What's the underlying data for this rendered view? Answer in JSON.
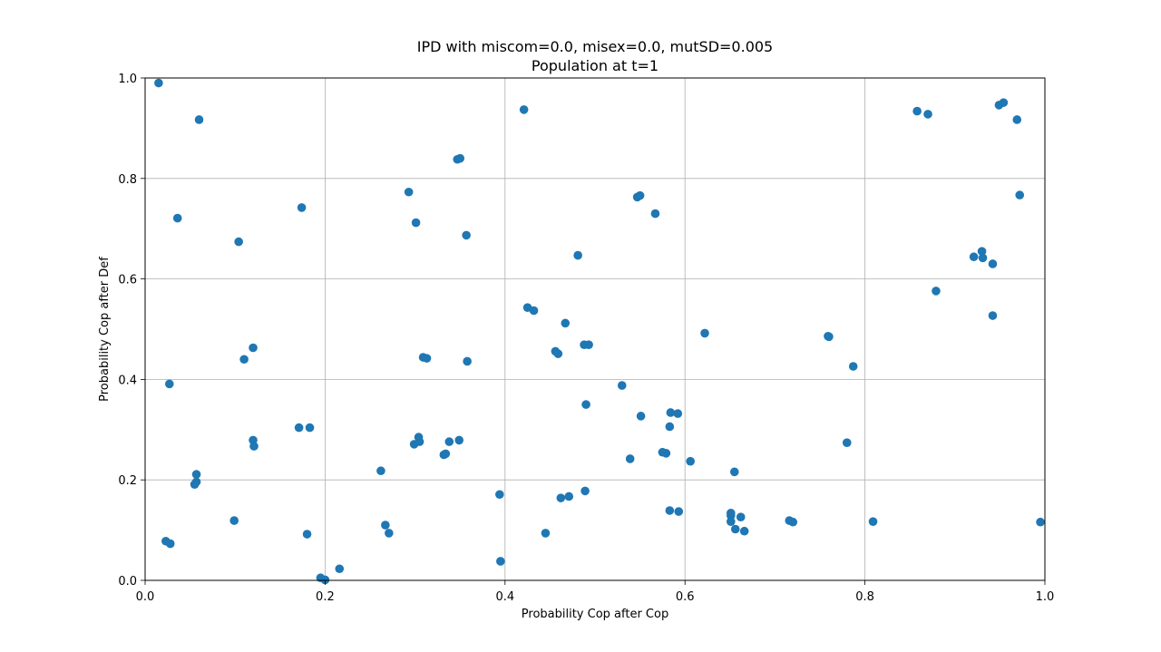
{
  "chart_data": {
    "type": "scatter",
    "title": "IPD with miscom=0.0, misex=0.0, mutSD=0.005",
    "subtitle": "Population at t=1",
    "xlabel": "Probability Cop after Cop",
    "ylabel": "Probability Cop after Def",
    "xlim": [
      0.0,
      1.0
    ],
    "ylim": [
      0.0,
      1.0
    ],
    "xticks": [
      "0.0",
      "0.2",
      "0.4",
      "0.6",
      "0.8",
      "1.0"
    ],
    "yticks": [
      "0.0",
      "0.2",
      "0.4",
      "0.6",
      "0.8",
      "1.0"
    ],
    "grid": true,
    "marker_color": "#1f77b4",
    "series": [
      {
        "points": [
          [
            0.015,
            0.99
          ],
          [
            0.06,
            0.917
          ],
          [
            0.036,
            0.721
          ],
          [
            0.104,
            0.674
          ],
          [
            0.174,
            0.742
          ],
          [
            0.12,
            0.463
          ],
          [
            0.11,
            0.44
          ],
          [
            0.027,
            0.391
          ],
          [
            0.171,
            0.304
          ],
          [
            0.183,
            0.304
          ],
          [
            0.12,
            0.279
          ],
          [
            0.121,
            0.267
          ],
          [
            0.057,
            0.211
          ],
          [
            0.057,
            0.196
          ],
          [
            0.055,
            0.191
          ],
          [
            0.099,
            0.119
          ],
          [
            0.023,
            0.078
          ],
          [
            0.028,
            0.073
          ],
          [
            0.18,
            0.092
          ],
          [
            0.195,
            0.005
          ],
          [
            0.2,
            0.001
          ],
          [
            0.216,
            0.023
          ],
          [
            0.262,
            0.218
          ],
          [
            0.267,
            0.11
          ],
          [
            0.271,
            0.094
          ],
          [
            0.293,
            0.773
          ],
          [
            0.301,
            0.712
          ],
          [
            0.309,
            0.444
          ],
          [
            0.313,
            0.442
          ],
          [
            0.299,
            0.271
          ],
          [
            0.304,
            0.285
          ],
          [
            0.305,
            0.276
          ],
          [
            0.332,
            0.25
          ],
          [
            0.334,
            0.252
          ],
          [
            0.338,
            0.276
          ],
          [
            0.349,
            0.279
          ],
          [
            0.347,
            0.838
          ],
          [
            0.35,
            0.84
          ],
          [
            0.357,
            0.687
          ],
          [
            0.358,
            0.436
          ],
          [
            0.394,
            0.171
          ],
          [
            0.395,
            0.038
          ],
          [
            0.421,
            0.937
          ],
          [
            0.425,
            0.543
          ],
          [
            0.432,
            0.537
          ],
          [
            0.445,
            0.094
          ],
          [
            0.456,
            0.456
          ],
          [
            0.459,
            0.451
          ],
          [
            0.462,
            0.164
          ],
          [
            0.467,
            0.512
          ],
          [
            0.471,
            0.167
          ],
          [
            0.481,
            0.647
          ],
          [
            0.488,
            0.469
          ],
          [
            0.493,
            0.469
          ],
          [
            0.49,
            0.35
          ],
          [
            0.489,
            0.178
          ],
          [
            0.53,
            0.388
          ],
          [
            0.539,
            0.242
          ],
          [
            0.547,
            0.763
          ],
          [
            0.55,
            0.766
          ],
          [
            0.551,
            0.327
          ],
          [
            0.567,
            0.73
          ],
          [
            0.575,
            0.255
          ],
          [
            0.579,
            0.253
          ],
          [
            0.583,
            0.306
          ],
          [
            0.584,
            0.334
          ],
          [
            0.592,
            0.332
          ],
          [
            0.583,
            0.139
          ],
          [
            0.593,
            0.137
          ],
          [
            0.606,
            0.237
          ],
          [
            0.622,
            0.492
          ],
          [
            0.651,
            0.134
          ],
          [
            0.651,
            0.129
          ],
          [
            0.651,
            0.117
          ],
          [
            0.655,
            0.216
          ],
          [
            0.656,
            0.102
          ],
          [
            0.662,
            0.126
          ],
          [
            0.666,
            0.098
          ],
          [
            0.716,
            0.119
          ],
          [
            0.72,
            0.116
          ],
          [
            0.759,
            0.486
          ],
          [
            0.76,
            0.485
          ],
          [
            0.78,
            0.274
          ],
          [
            0.787,
            0.426
          ],
          [
            0.809,
            0.117
          ],
          [
            0.858,
            0.934
          ],
          [
            0.87,
            0.928
          ],
          [
            0.879,
            0.576
          ],
          [
            0.921,
            0.644
          ],
          [
            0.93,
            0.655
          ],
          [
            0.931,
            0.642
          ],
          [
            0.942,
            0.63
          ],
          [
            0.942,
            0.527
          ],
          [
            0.949,
            0.946
          ],
          [
            0.954,
            0.951
          ],
          [
            0.969,
            0.917
          ],
          [
            0.972,
            0.767
          ],
          [
            0.995,
            0.116
          ]
        ]
      }
    ]
  }
}
